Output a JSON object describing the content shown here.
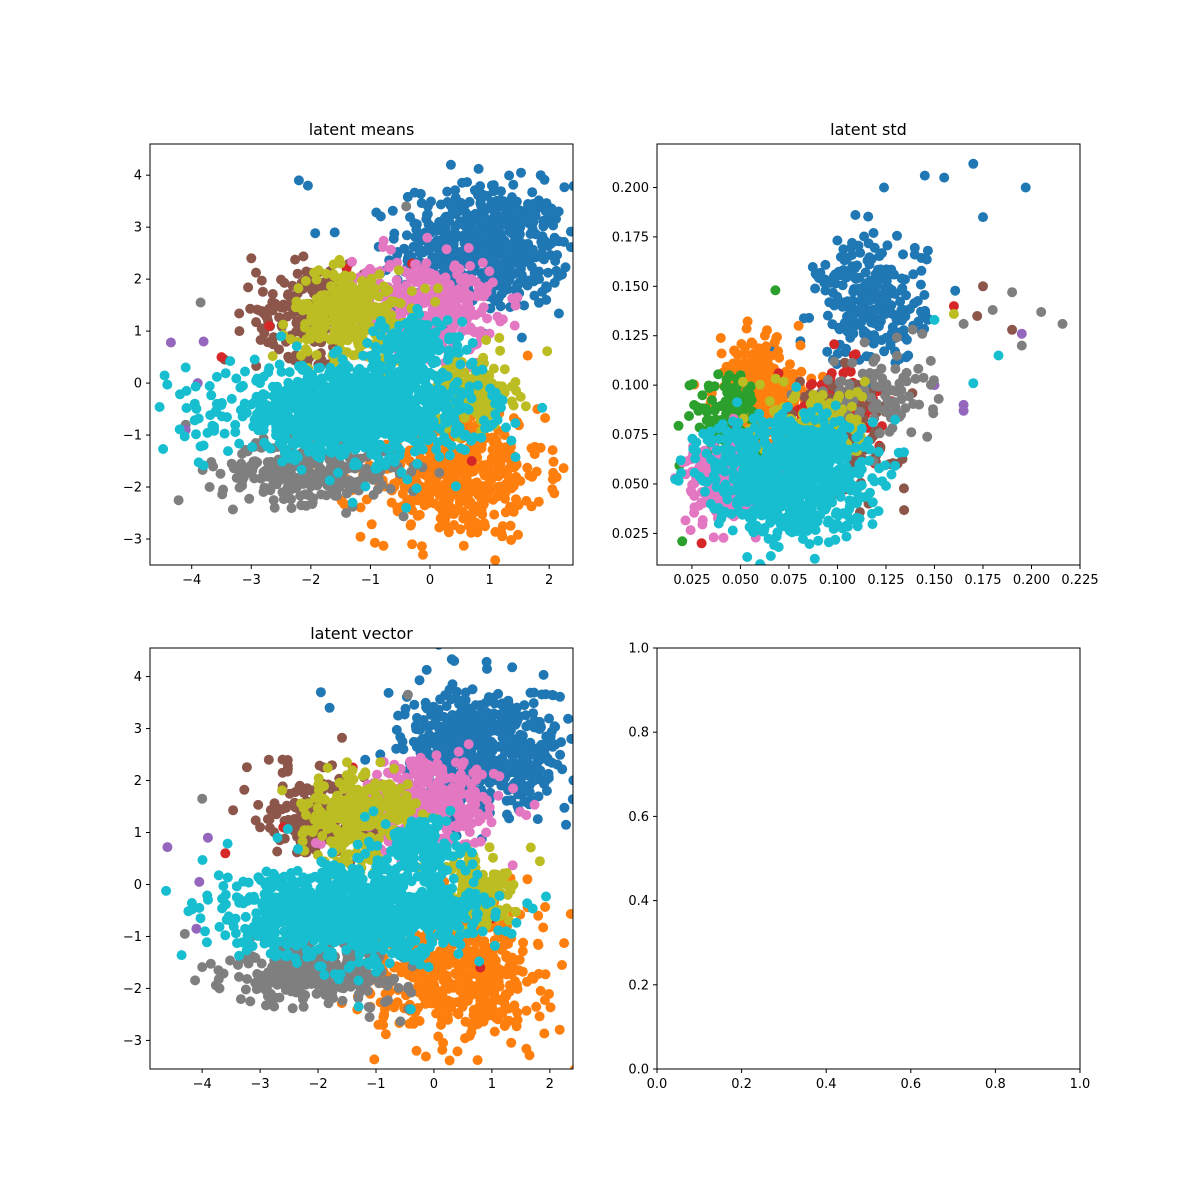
{
  "colors": {
    "blue": "#1f77b4",
    "orange": "#ff7f0e",
    "green": "#2ca02c",
    "red": "#d62728",
    "purple": "#9467bd",
    "brown": "#8c564b",
    "pink": "#e377c2",
    "gray": "#7f7f7f",
    "olive": "#bcbd22",
    "cyan": "#17becf"
  },
  "chart_data": [
    {
      "type": "scatter",
      "title": "latent means",
      "xlabel": "",
      "ylabel": "",
      "xlim": [
        -4.7,
        2.4
      ],
      "ylim": [
        -3.5,
        4.6
      ],
      "xticks": [
        -4,
        -3,
        -2,
        -1,
        0,
        1,
        2
      ],
      "yticks": [
        -3,
        -2,
        -1,
        0,
        1,
        2,
        3,
        4
      ],
      "grid": false,
      "series": [
        {
          "color": "blue",
          "clusters": [
            {
              "cx": 0.9,
              "cy": 2.6,
              "sx": 0.7,
              "sy": 0.6,
              "n": 600
            }
          ],
          "points": [
            [
              -2.2,
              3.9
            ],
            [
              -2.05,
              3.8
            ],
            [
              0.35,
              4.2
            ],
            [
              -1.6,
              2.9
            ],
            [
              1.95,
              1.6
            ]
          ]
        },
        {
          "color": "orange",
          "clusters": [
            {
              "cx": 0.4,
              "cy": -1.7,
              "sx": 0.75,
              "sy": 0.65,
              "n": 500
            }
          ],
          "points": [
            [
              1.8,
              -0.5
            ],
            [
              -0.3,
              -3.1
            ]
          ]
        },
        {
          "color": "brown",
          "clusters": [
            {
              "cx": -2.0,
              "cy": 1.4,
              "sx": 0.45,
              "sy": 0.45,
              "n": 180
            }
          ],
          "points": [
            [
              -3.0,
              2.4
            ],
            [
              -3.2,
              1.0
            ]
          ]
        },
        {
          "color": "gray",
          "clusters": [
            {
              "cx": -2.0,
              "cy": -1.7,
              "sx": 0.75,
              "sy": 0.3,
              "n": 300
            }
          ],
          "points": [
            [
              -3.85,
              1.55
            ],
            [
              -4.1,
              -0.8
            ],
            [
              -0.4,
              3.4
            ],
            [
              -3.7,
              -2.0
            ]
          ]
        },
        {
          "color": "purple",
          "clusters": [],
          "points": [
            [
              -4.35,
              0.78
            ],
            [
              -3.8,
              0.8
            ],
            [
              -3.9,
              0.0
            ],
            [
              -4.1,
              -0.9
            ]
          ]
        },
        {
          "color": "red",
          "clusters": [],
          "points": [
            [
              -0.3,
              2.3
            ],
            [
              -1.4,
              2.2
            ],
            [
              -3.5,
              0.5
            ],
            [
              -2.7,
              1.1
            ],
            [
              1.0,
              -0.6
            ],
            [
              0.7,
              -1.5
            ]
          ]
        },
        {
          "color": "pink",
          "clusters": [
            {
              "cx": -0.1,
              "cy": 1.5,
              "sx": 0.6,
              "sy": 0.45,
              "n": 350
            }
          ],
          "points": [
            [
              0.65,
              2.6
            ],
            [
              0.85,
              1.0
            ]
          ]
        },
        {
          "color": "olive",
          "clusters": [
            {
              "cx": -1.3,
              "cy": 1.3,
              "sx": 0.5,
              "sy": 0.45,
              "n": 280
            },
            {
              "cx": 0.7,
              "cy": -0.15,
              "sx": 0.35,
              "sy": 0.35,
              "n": 140
            }
          ],
          "points": [
            [
              -1.5,
              2.3
            ]
          ]
        },
        {
          "color": "cyan",
          "clusters": [
            {
              "cx": -1.3,
              "cy": -0.55,
              "sx": 1.05,
              "sy": 0.42,
              "n": 1100
            },
            {
              "cx": -0.2,
              "cy": 0.7,
              "sx": 0.35,
              "sy": 0.3,
              "n": 150
            }
          ],
          "points": [
            [
              -4.1,
              0.3
            ],
            [
              -3.8,
              -1.2
            ],
            [
              -1.3,
              -2.3
            ],
            [
              -0.4,
              -2.4
            ],
            [
              -2.5,
              0.9
            ]
          ]
        }
      ]
    },
    {
      "type": "scatter",
      "title": "latent std",
      "xlabel": "",
      "ylabel": "",
      "xlim": [
        0.007,
        0.225
      ],
      "ylim": [
        0.009,
        0.222
      ],
      "xticks": [
        0.025,
        0.05,
        0.075,
        0.1,
        0.125,
        0.15,
        0.175,
        0.2,
        0.225
      ],
      "xtick_labels": [
        "0.025",
        "0.050",
        "0.075",
        "0.100",
        "0.125",
        "0.150",
        "0.175",
        "0.200",
        "0.225"
      ],
      "yticks": [
        0.025,
        0.05,
        0.075,
        0.1,
        0.125,
        0.15,
        0.175,
        0.2
      ],
      "ytick_labels": [
        "0.025",
        "0.050",
        "0.075",
        "0.100",
        "0.125",
        "0.150",
        "0.175",
        "0.200"
      ],
      "grid": false,
      "series": [
        {
          "color": "blue",
          "clusters": [
            {
              "cx": 0.118,
              "cy": 0.142,
              "sx": 0.014,
              "sy": 0.016,
              "n": 260
            }
          ],
          "points": [
            [
              0.17,
              0.212
            ],
            [
              0.197,
              0.2
            ],
            [
              0.145,
              0.206
            ],
            [
              0.155,
              0.205
            ],
            [
              0.175,
              0.185
            ],
            [
              0.124,
              0.2
            ]
          ]
        },
        {
          "color": "orange",
          "clusters": [
            {
              "cx": 0.06,
              "cy": 0.097,
              "sx": 0.011,
              "sy": 0.013,
              "n": 260
            }
          ],
          "points": [
            [
              0.08,
              0.13
            ]
          ]
        },
        {
          "color": "green",
          "clusters": [
            {
              "cx": 0.042,
              "cy": 0.083,
              "sx": 0.009,
              "sy": 0.012,
              "n": 120
            }
          ],
          "points": [
            [
              0.02,
              0.021
            ],
            [
              0.068,
              0.148
            ]
          ]
        },
        {
          "color": "red",
          "clusters": [
            {
              "cx": 0.1,
              "cy": 0.09,
              "sx": 0.012,
              "sy": 0.01,
              "n": 90
            }
          ],
          "points": [
            [
              0.03,
              0.02
            ],
            [
              0.16,
              0.14
            ]
          ]
        },
        {
          "color": "purple",
          "clusters": [],
          "points": [
            [
              0.165,
              0.09
            ],
            [
              0.165,
              0.087
            ],
            [
              0.195,
              0.126
            ],
            [
              0.15,
              0.1
            ]
          ]
        },
        {
          "color": "brown",
          "clusters": [
            {
              "cx": 0.1,
              "cy": 0.075,
              "sx": 0.018,
              "sy": 0.014,
              "n": 140
            }
          ],
          "points": [
            [
              0.175,
              0.15
            ],
            [
              0.19,
              0.128
            ],
            [
              0.172,
              0.135
            ]
          ]
        },
        {
          "color": "pink",
          "clusters": [
            {
              "cx": 0.04,
              "cy": 0.05,
              "sx": 0.009,
              "sy": 0.01,
              "n": 200
            }
          ],
          "points": []
        },
        {
          "color": "gray",
          "clusters": [
            {
              "cx": 0.12,
              "cy": 0.095,
              "sx": 0.014,
              "sy": 0.012,
              "n": 90
            }
          ],
          "points": [
            [
              0.216,
              0.131
            ],
            [
              0.205,
              0.137
            ],
            [
              0.19,
              0.147
            ],
            [
              0.18,
              0.138
            ],
            [
              0.195,
              0.12
            ],
            [
              0.165,
              0.131
            ]
          ]
        },
        {
          "color": "olive",
          "clusters": [
            {
              "cx": 0.09,
              "cy": 0.08,
              "sx": 0.012,
              "sy": 0.01,
              "n": 160
            }
          ],
          "points": [
            [
              0.16,
              0.136
            ]
          ]
        },
        {
          "color": "cyan",
          "clusters": [
            {
              "cx": 0.075,
              "cy": 0.055,
              "sx": 0.02,
              "sy": 0.015,
              "n": 900
            }
          ],
          "points": [
            [
              0.183,
              0.115
            ],
            [
              0.17,
              0.101
            ],
            [
              0.15,
              0.133
            ],
            [
              0.125,
              0.049
            ]
          ]
        }
      ]
    },
    {
      "type": "scatter",
      "title": "latent vector",
      "xlabel": "",
      "ylabel": "",
      "xlim": [
        -4.9,
        2.4
      ],
      "ylim": [
        -3.55,
        4.55
      ],
      "xticks": [
        -4,
        -3,
        -2,
        -1,
        0,
        1,
        2
      ],
      "yticks": [
        -3,
        -2,
        -1,
        0,
        1,
        2,
        3,
        4
      ],
      "grid": false,
      "series": [
        {
          "color": "blue",
          "clusters": [
            {
              "cx": 0.9,
              "cy": 2.6,
              "sx": 0.7,
              "sy": 0.6,
              "n": 600
            }
          ],
          "points": [
            [
              -1.95,
              3.7
            ],
            [
              -1.8,
              3.4
            ],
            [
              0.35,
              4.3
            ],
            [
              2.05,
              2.65
            ],
            [
              1.95,
              1.8
            ]
          ]
        },
        {
          "color": "orange",
          "clusters": [
            {
              "cx": 0.4,
              "cy": -1.7,
              "sx": 0.75,
              "sy": 0.65,
              "n": 500
            }
          ],
          "points": [
            [
              1.8,
              -0.6
            ],
            [
              -0.3,
              -3.2
            ]
          ]
        },
        {
          "color": "brown",
          "clusters": [
            {
              "cx": -2.0,
              "cy": 1.4,
              "sx": 0.45,
              "sy": 0.45,
              "n": 180
            }
          ],
          "points": [
            [
              -2.85,
              2.4
            ],
            [
              -3.0,
              1.1
            ]
          ]
        },
        {
          "color": "gray",
          "clusters": [
            {
              "cx": -2.0,
              "cy": -1.7,
              "sx": 0.75,
              "sy": 0.3,
              "n": 300
            }
          ],
          "points": [
            [
              -4.0,
              1.65
            ],
            [
              -4.3,
              -0.95
            ],
            [
              -0.45,
              3.65
            ],
            [
              -3.7,
              -2.0
            ]
          ]
        },
        {
          "color": "purple",
          "clusters": [],
          "points": [
            [
              -4.6,
              0.72
            ],
            [
              -3.9,
              0.9
            ],
            [
              -4.05,
              0.05
            ],
            [
              -4.1,
              -0.85
            ]
          ]
        },
        {
          "color": "red",
          "clusters": [],
          "points": [
            [
              -0.3,
              2.35
            ],
            [
              -1.4,
              2.25
            ],
            [
              -3.6,
              0.6
            ],
            [
              -2.6,
              1.1
            ],
            [
              1.0,
              -0.65
            ],
            [
              0.8,
              -1.6
            ]
          ]
        },
        {
          "color": "pink",
          "clusters": [
            {
              "cx": -0.1,
              "cy": 1.5,
              "sx": 0.6,
              "sy": 0.45,
              "n": 350
            }
          ],
          "points": [
            [
              0.6,
              2.7
            ],
            [
              0.9,
              1.0
            ]
          ]
        },
        {
          "color": "olive",
          "clusters": [
            {
              "cx": -1.3,
              "cy": 1.3,
              "sx": 0.5,
              "sy": 0.45,
              "n": 280
            },
            {
              "cx": 0.7,
              "cy": -0.15,
              "sx": 0.35,
              "sy": 0.35,
              "n": 140
            }
          ],
          "points": [
            [
              -1.5,
              2.35
            ]
          ]
        },
        {
          "color": "cyan",
          "clusters": [
            {
              "cx": -1.3,
              "cy": -0.55,
              "sx": 1.05,
              "sy": 0.42,
              "n": 1100
            },
            {
              "cx": -0.2,
              "cy": 0.7,
              "sx": 0.35,
              "sy": 0.3,
              "n": 150
            }
          ],
          "points": [
            [
              -4.05,
              -0.45
            ],
            [
              -3.95,
              -0.9
            ],
            [
              -1.3,
              -2.35
            ],
            [
              -0.4,
              -2.4
            ],
            [
              -2.7,
              0.9
            ]
          ]
        }
      ]
    },
    {
      "type": "scatter",
      "title": "",
      "xlabel": "",
      "ylabel": "",
      "xlim": [
        0.0,
        1.0
      ],
      "ylim": [
        0.0,
        1.0
      ],
      "xticks": [
        0.0,
        0.2,
        0.4,
        0.6,
        0.8,
        1.0
      ],
      "xtick_labels": [
        "0.0",
        "0.2",
        "0.4",
        "0.6",
        "0.8",
        "1.0"
      ],
      "yticks": [
        0.0,
        0.2,
        0.4,
        0.6,
        0.8,
        1.0
      ],
      "ytick_labels": [
        "0.0",
        "0.2",
        "0.4",
        "0.6",
        "0.8",
        "1.0"
      ],
      "grid": false,
      "series": []
    }
  ]
}
